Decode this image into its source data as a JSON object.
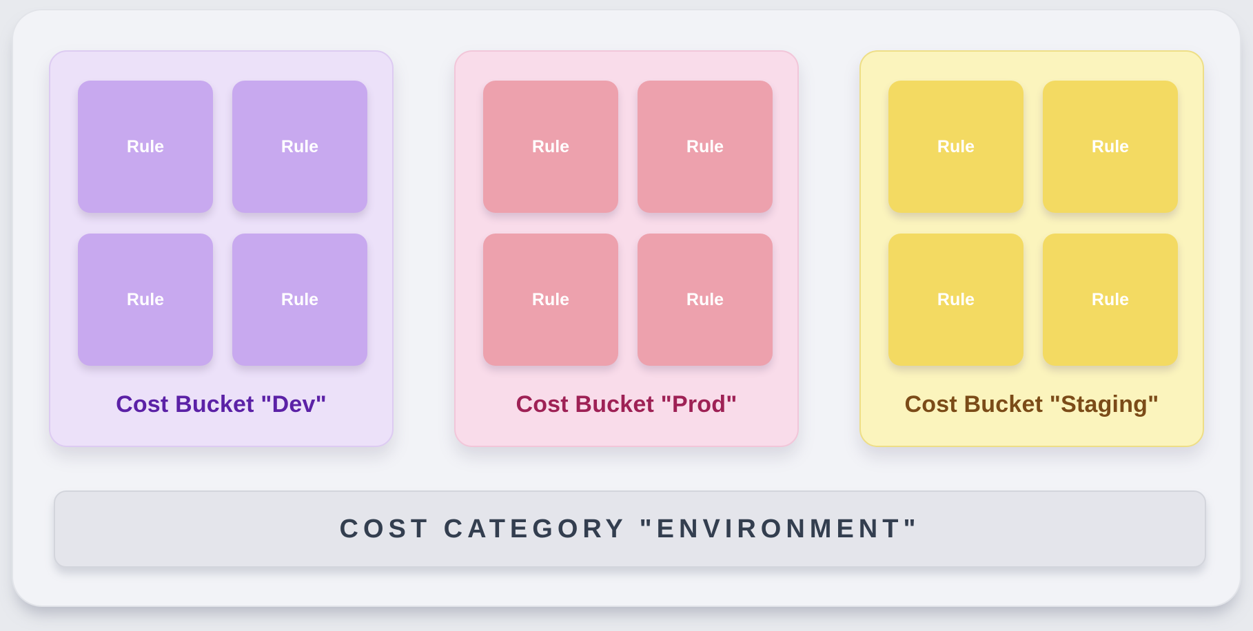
{
  "diagram": {
    "buckets": [
      {
        "id": "dev",
        "label": "Cost Bucket \"Dev\"",
        "rules": [
          "Rule",
          "Rule",
          "Rule",
          "Rule"
        ],
        "colors": {
          "bg": "#ece1f9",
          "border": "#ddcbf2",
          "rule": "#c8a9ef",
          "label": "#5b21a6"
        }
      },
      {
        "id": "prod",
        "label": "Cost Bucket \"Prod\"",
        "rules": [
          "Rule",
          "Rule",
          "Rule",
          "Rule"
        ],
        "colors": {
          "bg": "#f9dcea",
          "border": "#f2c6d9",
          "rule": "#eda1ad",
          "label": "#9e2155"
        }
      },
      {
        "id": "staging",
        "label": "Cost Bucket \"Staging\"",
        "rules": [
          "Rule",
          "Rule",
          "Rule",
          "Rule"
        ],
        "colors": {
          "bg": "#fbf4bd",
          "border": "#eede86",
          "rule": "#f3da62",
          "label": "#7b4b18"
        }
      }
    ],
    "category_bar": {
      "label": "COST CATEGORY \"ENVIRONMENT\""
    }
  }
}
